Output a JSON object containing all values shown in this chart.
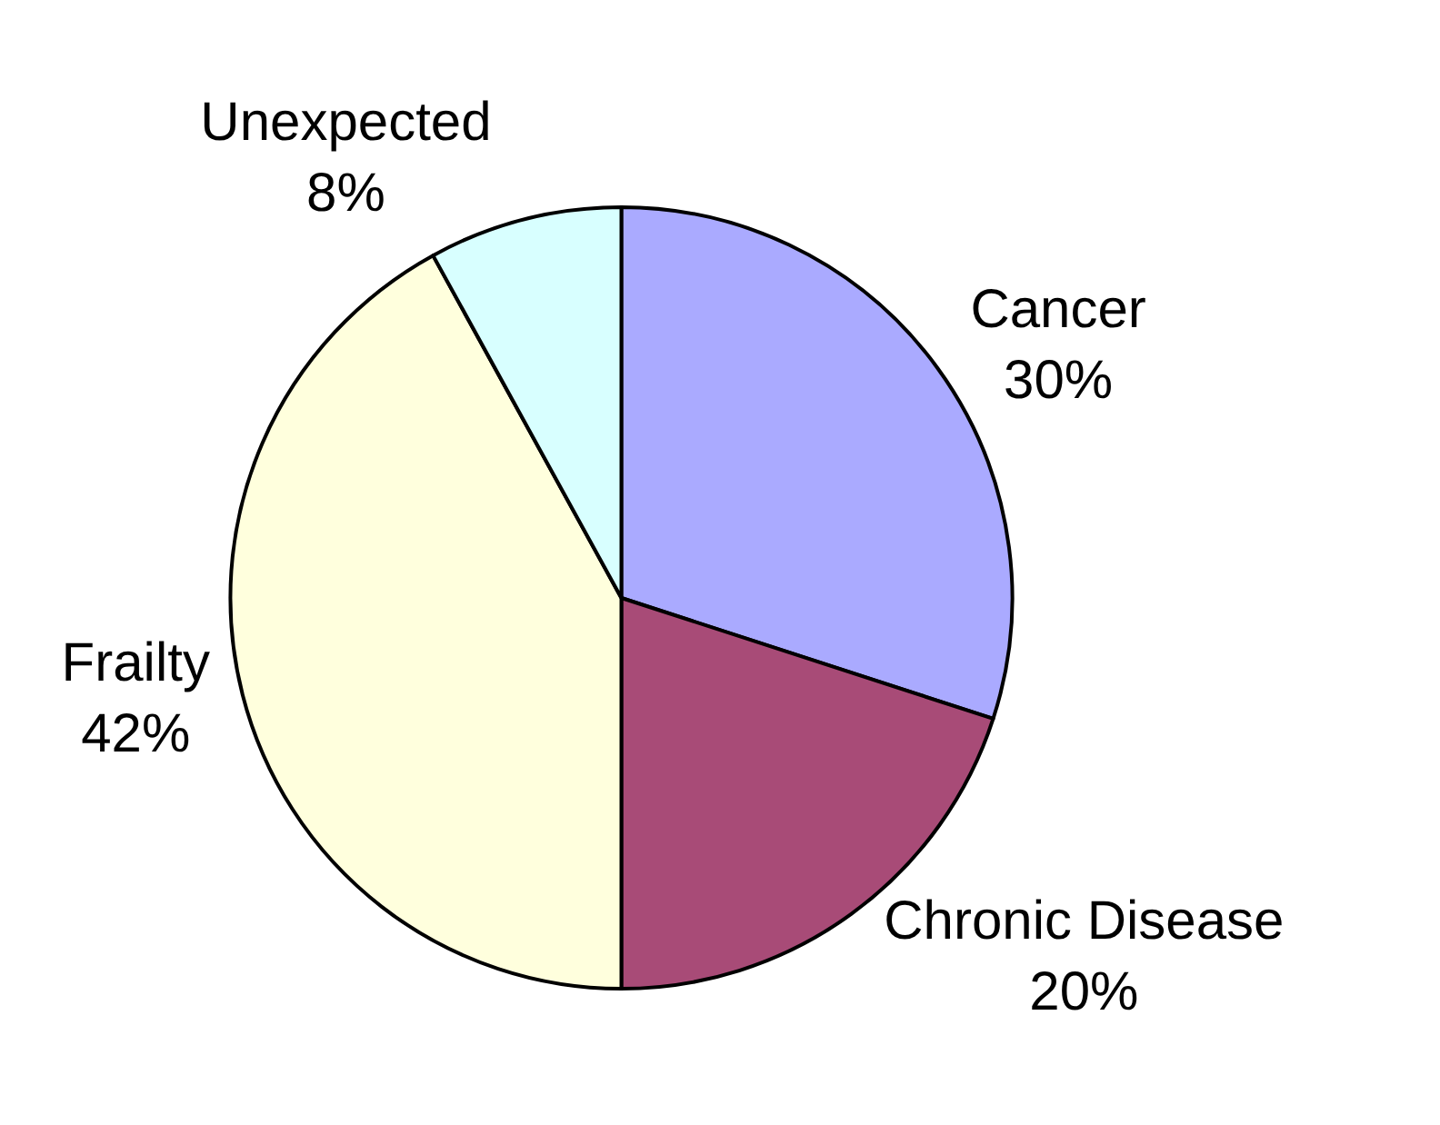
{
  "chart_data": {
    "type": "pie",
    "categories": [
      "Cancer",
      "Chronic Disease",
      "Frailty",
      "Unexpected"
    ],
    "values": [
      30,
      20,
      42,
      8
    ],
    "value_labels": [
      "30%",
      "20%",
      "42%",
      "8%"
    ],
    "colors": [
      "#aaaaff",
      "#a84b77",
      "#ffffdd",
      "#d8ffff"
    ],
    "legend": false
  }
}
